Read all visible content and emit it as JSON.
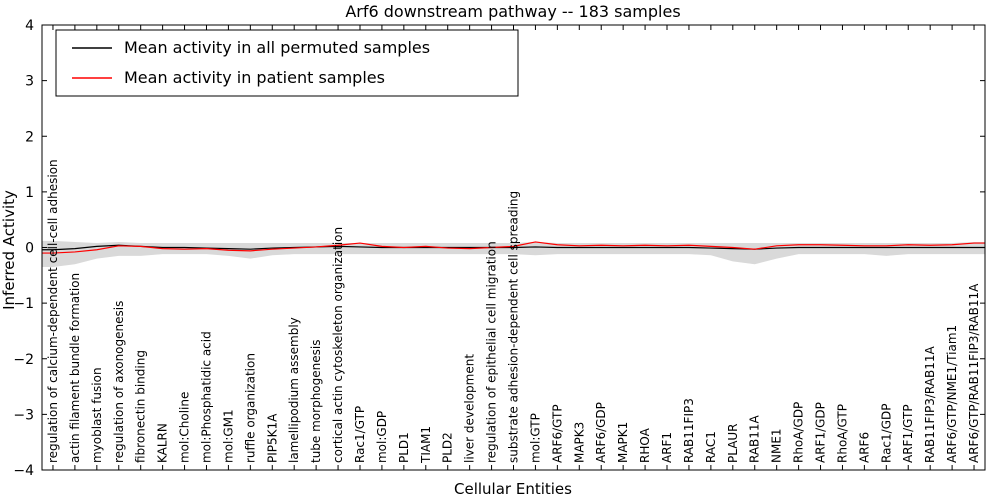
{
  "chart_data": {
    "type": "line",
    "title": "Arf6 downstream pathway -- 183 samples",
    "xlabel": "Cellular Entities",
    "ylabel": "Inferred Activity",
    "ylim": [
      -4,
      4
    ],
    "yticks": [
      -4,
      -3,
      -2,
      -1,
      0,
      1,
      2,
      3,
      4
    ],
    "grid": false,
    "legend_position": "upper left",
    "categories": [
      "regulation of calcium-dependent cell-cell adhesion",
      "actin filament bundle formation",
      "myoblast fusion",
      "regulation of axonogenesis",
      "fibronectin binding",
      "KALRN",
      "mol:Choline",
      "mol:Phosphatidic acid",
      "mol:GM1",
      "ruffle organization",
      "PIP5K1A",
      "lamellipodium assembly",
      "tube morphogenesis",
      "cortical actin cytoskeleton organization",
      "Rac1/GTP",
      "mol:GDP",
      "PLD1",
      "TIAM1",
      "PLD2",
      "liver development",
      "regulation of epithelial cell migration",
      "substrate adhesion-dependent cell spreading",
      "mol:GTP",
      "ARF6/GTP",
      "MAPK3",
      "ARF6/GDP",
      "MAPK1",
      "RHOA",
      "ARF1",
      "RAB11FIP3",
      "RAC1",
      "PLAUR",
      "RAB11A",
      "NME1",
      "RhoA/GDP",
      "ARF1/GDP",
      "RhoA/GTP",
      "ARF6",
      "Rac1/GDP",
      "ARF1/GTP",
      "RAB11FIP3/RAB11A",
      "ARF6/GTP/NME1/Tiam1",
      "ARF6/GTP/RAB11FIP3/RAB11A"
    ],
    "series": [
      {
        "name": "Mean activity in all permuted samples",
        "color": "#000000",
        "values": [
          -0.04,
          -0.02,
          0.02,
          0.04,
          0.02,
          0.0,
          0.0,
          -0.01,
          -0.02,
          -0.03,
          -0.01,
          0.0,
          0.01,
          0.02,
          0.01,
          0.0,
          0.0,
          0.0,
          0.0,
          0.0,
          0.0,
          0.0,
          0.01,
          0.0,
          0.0,
          0.0,
          0.0,
          0.0,
          0.0,
          0.0,
          -0.01,
          -0.02,
          -0.03,
          -0.01,
          0.0,
          0.0,
          0.0,
          0.0,
          0.0,
          0.0,
          0.0,
          0.0,
          0.0
        ]
      },
      {
        "name": "Mean activity in patient samples",
        "color": "#ff0000",
        "values": [
          -0.1,
          -0.08,
          -0.04,
          0.03,
          0.02,
          -0.02,
          -0.03,
          -0.02,
          -0.05,
          -0.06,
          -0.03,
          -0.01,
          0.01,
          0.04,
          0.08,
          0.02,
          0.0,
          0.02,
          -0.01,
          -0.02,
          0.0,
          0.02,
          0.1,
          0.05,
          0.03,
          0.04,
          0.03,
          0.04,
          0.03,
          0.04,
          0.02,
          0.0,
          -0.03,
          0.03,
          0.05,
          0.05,
          0.04,
          0.03,
          0.03,
          0.05,
          0.04,
          0.05,
          0.08
        ]
      }
    ],
    "band": {
      "name": "permuted-sample-range",
      "color": "#d9d9d9",
      "upper": [
        0.12,
        0.1,
        0.08,
        0.1,
        0.08,
        0.08,
        0.08,
        0.08,
        0.08,
        0.08,
        0.08,
        0.08,
        0.08,
        0.08,
        0.08,
        0.08,
        0.08,
        0.08,
        0.08,
        0.08,
        0.08,
        0.08,
        0.1,
        0.08,
        0.08,
        0.08,
        0.08,
        0.08,
        0.08,
        0.08,
        0.08,
        0.08,
        0.08,
        0.08,
        0.08,
        0.08,
        0.08,
        0.08,
        0.08,
        0.08,
        0.08,
        0.08,
        0.1
      ],
      "lower": [
        -0.35,
        -0.3,
        -0.2,
        -0.15,
        -0.15,
        -0.12,
        -0.12,
        -0.12,
        -0.15,
        -0.2,
        -0.14,
        -0.12,
        -0.12,
        -0.12,
        -0.12,
        -0.12,
        -0.12,
        -0.12,
        -0.12,
        -0.12,
        -0.12,
        -0.12,
        -0.14,
        -0.12,
        -0.12,
        -0.12,
        -0.12,
        -0.12,
        -0.12,
        -0.12,
        -0.14,
        -0.25,
        -0.3,
        -0.2,
        -0.12,
        -0.12,
        -0.12,
        -0.12,
        -0.15,
        -0.12,
        -0.12,
        -0.12,
        -0.12
      ]
    }
  }
}
